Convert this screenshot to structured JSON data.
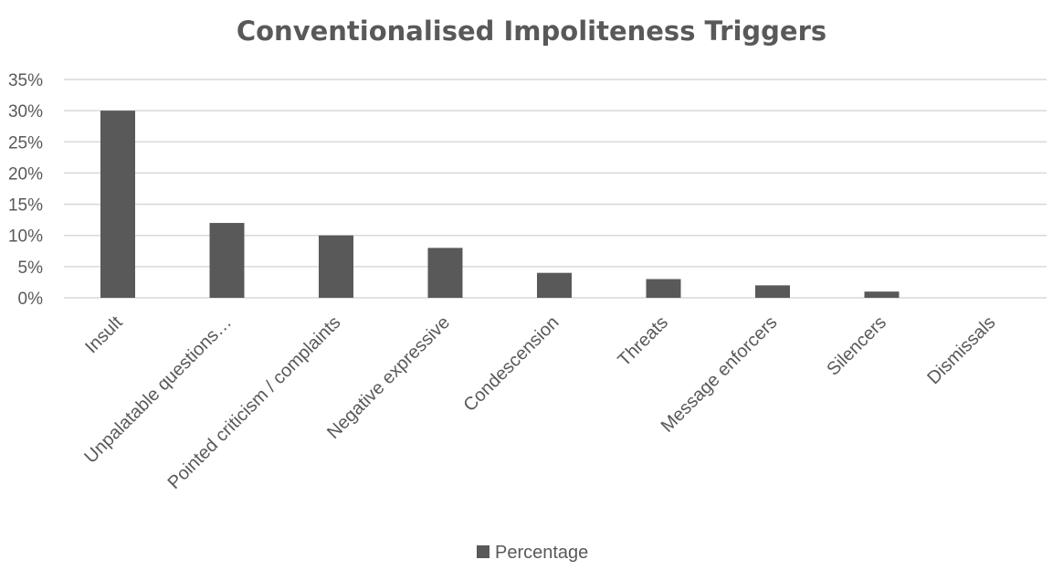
{
  "chart_data": {
    "type": "bar",
    "title": "Conventionalised Impoliteness Triggers",
    "xlabel": "",
    "ylabel": "",
    "categories": [
      "Insult",
      "Unpalatable questions…",
      "Pointed criticism / complaints",
      "Negative expressive",
      "Condescension",
      "Threats",
      "Message enforcers",
      "Silencers",
      "Dismissals"
    ],
    "series": [
      {
        "name": "Percentage",
        "values": [
          30,
          12,
          10,
          8,
          4,
          3,
          2,
          1,
          0
        ]
      }
    ],
    "y_ticks": [
      "0%",
      "5%",
      "10%",
      "15%",
      "20%",
      "25%",
      "30%",
      "35%"
    ],
    "ylim": [
      0,
      35
    ],
    "y_unit": "%",
    "grid": true,
    "legend_position": "bottom",
    "bar_color": "#595959"
  }
}
